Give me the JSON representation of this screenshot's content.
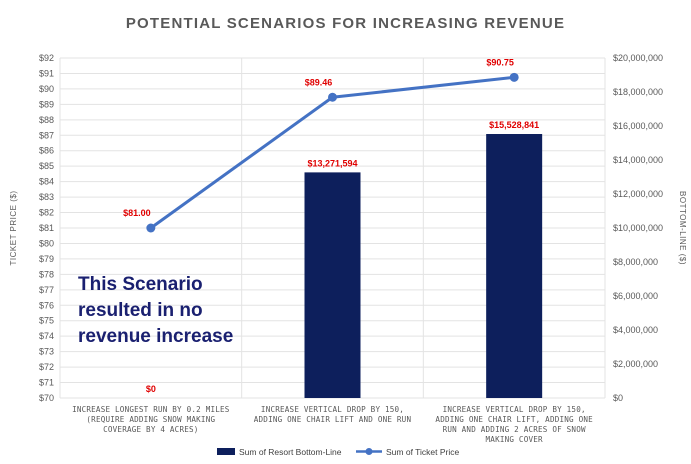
{
  "chart_data": {
    "type": "bar+line",
    "title": "POTENTIAL SCENARIOS FOR INCREASING REVENUE",
    "categories": [
      [
        "INCREASE LONGEST RUN BY 0.2 MILES",
        "(REQUIRE ADDING SNOW MAKING",
        "COVERAGE BY 4 ACRES)"
      ],
      [
        "INCREASE VERTICAL DROP BY 150,",
        "ADDING ONE CHAIR LIFT AND ONE RUN"
      ],
      [
        "INCREASE VERTICAL DROP BY 150,",
        "ADDING ONE CHAIR LIFT, ADDING ONE",
        "RUN AND ADDING 2 ACRES OF SNOW",
        "MAKING COVER"
      ]
    ],
    "series": [
      {
        "name": "Sum of Resort Bottom-Line",
        "type": "bar",
        "axis": "right",
        "color": "#0d1f5c",
        "values": [
          0,
          13271594,
          15528841
        ],
        "labels": [
          "$0",
          "$13,271,594",
          "$15,528,841"
        ]
      },
      {
        "name": "Sum of Ticket Price",
        "type": "line",
        "axis": "left",
        "color": "#4472c4",
        "values": [
          81.0,
          89.46,
          90.75
        ],
        "labels": [
          "$81.00",
          "$89.46",
          "$90.75"
        ]
      }
    ],
    "ylabel": "TICKET PRICE ($)",
    "y2label": "BOTTOM-LINE ($)",
    "ylim": [
      70,
      92
    ],
    "y2lim": [
      0,
      20000000
    ],
    "y_ticks": [
      "$70",
      "$71",
      "$72",
      "$73",
      "$74",
      "$75",
      "$76",
      "$77",
      "$78",
      "$79",
      "$80",
      "$81",
      "$82",
      "$83",
      "$84",
      "$85",
      "$86",
      "$87",
      "$88",
      "$89",
      "$90",
      "$91",
      "$92"
    ],
    "y2_ticks": [
      "$0",
      "$2,000,000",
      "$4,000,000",
      "$6,000,000",
      "$8,000,000",
      "$10,000,000",
      "$12,000,000",
      "$14,000,000",
      "$16,000,000",
      "$18,000,000",
      "$20,000,000"
    ],
    "grid": true,
    "legend_position": "bottom",
    "annotation": [
      "This Scenario",
      "resulted in no",
      "revenue increase"
    ],
    "annotation_color": "#1a2070",
    "label_color": "#e00000"
  }
}
